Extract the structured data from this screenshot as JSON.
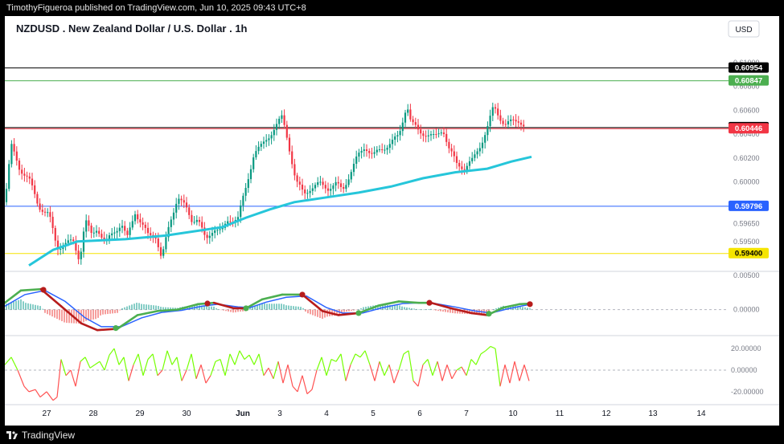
{
  "header": {
    "publisher_text": "TimothyFigueroa published on TradingView.com, Jun 10, 2025 09:43 UTC+8"
  },
  "footer": {
    "brand": "TradingView",
    "logo_icon": "tradingview-logo-icon"
  },
  "chart_data": {
    "type": "candlestick",
    "title": "NZDUSD . New Zealand Dollar / U.S. Dollar . 1h",
    "currency": "USD",
    "x_tick_labels": [
      "27",
      "28",
      "29",
      "30",
      "Jun",
      "3",
      "4",
      "5",
      "6",
      "7",
      "10",
      "11",
      "12",
      "13",
      "14"
    ],
    "price_axis": {
      "tick_labels": [
        "0.61000",
        "0.60800",
        "0.60600",
        "0.60400",
        "0.60200",
        "0.60000",
        "0.59650",
        "0.59500",
        "0.59400"
      ],
      "ylim": [
        0.5925,
        0.6112
      ]
    },
    "price_path": [
      [
        0,
        0.5983
      ],
      [
        8,
        0.603
      ],
      [
        18,
        0.6012
      ],
      [
        30,
        0.6002
      ],
      [
        42,
        0.598
      ],
      [
        55,
        0.5972
      ],
      [
        65,
        0.5945
      ],
      [
        75,
        0.5948
      ],
      [
        85,
        0.595
      ],
      [
        93,
        0.5935
      ],
      [
        100,
        0.5968
      ],
      [
        108,
        0.5955
      ],
      [
        115,
        0.5962
      ],
      [
        125,
        0.5948
      ],
      [
        135,
        0.5958
      ],
      [
        145,
        0.5965
      ],
      [
        152,
        0.5952
      ],
      [
        162,
        0.5975
      ],
      [
        170,
        0.5965
      ],
      [
        178,
        0.5955
      ],
      [
        188,
        0.5955
      ],
      [
        195,
        0.5935
      ],
      [
        205,
        0.5965
      ],
      [
        215,
        0.5988
      ],
      [
        225,
        0.5978
      ],
      [
        232,
        0.5968
      ],
      [
        240,
        0.597
      ],
      [
        250,
        0.595
      ],
      [
        260,
        0.5962
      ],
      [
        270,
        0.5958
      ],
      [
        278,
        0.5968
      ],
      [
        290,
        0.597
      ],
      [
        300,
        0.5995
      ],
      [
        310,
        0.6025
      ],
      [
        320,
        0.603
      ],
      [
        335,
        0.6045
      ],
      [
        345,
        0.6054
      ],
      [
        352,
        0.6035
      ],
      [
        362,
        0.6
      ],
      [
        372,
        0.599
      ],
      [
        380,
        0.5995
      ],
      [
        392,
        0.5998
      ],
      [
        402,
        0.5995
      ],
      [
        412,
        0.5998
      ],
      [
        420,
        0.5993
      ],
      [
        428,
        0.6005
      ],
      [
        438,
        0.602
      ],
      [
        448,
        0.603
      ],
      [
        458,
        0.6022
      ],
      [
        468,
        0.6027
      ],
      [
        478,
        0.6032
      ],
      [
        490,
        0.6038
      ],
      [
        500,
        0.6066
      ],
      [
        505,
        0.605
      ],
      [
        515,
        0.6042
      ],
      [
        525,
        0.604
      ],
      [
        535,
        0.6037
      ],
      [
        545,
        0.6045
      ],
      [
        552,
        0.6028
      ],
      [
        562,
        0.6015
      ],
      [
        572,
        0.6012
      ],
      [
        582,
        0.6018
      ],
      [
        592,
        0.6032
      ],
      [
        600,
        0.6045
      ],
      [
        608,
        0.6063
      ],
      [
        615,
        0.6055
      ],
      [
        622,
        0.6048
      ],
      [
        630,
        0.605
      ],
      [
        640,
        0.6052
      ],
      [
        648,
        0.6045
      ]
    ],
    "moving_average_path": [
      [
        30,
        0.593
      ],
      [
        60,
        0.5943
      ],
      [
        90,
        0.595
      ],
      [
        150,
        0.5952
      ],
      [
        200,
        0.5955
      ],
      [
        270,
        0.5962
      ],
      [
        300,
        0.597
      ],
      [
        330,
        0.5977
      ],
      [
        360,
        0.5983
      ],
      [
        400,
        0.5987
      ],
      [
        440,
        0.5991
      ],
      [
        480,
        0.5996
      ],
      [
        520,
        0.6003
      ],
      [
        560,
        0.6008
      ],
      [
        600,
        0.6011
      ],
      [
        630,
        0.6017
      ],
      [
        655,
        0.6021
      ]
    ],
    "horizontal_lines": [
      {
        "label": "0.60954",
        "value": 0.60954,
        "color": "#000000"
      },
      {
        "label": "0.60847",
        "value": 0.60847,
        "color": "#4caf50"
      },
      {
        "label": "0.60455",
        "value": 0.60455,
        "color": "#000000"
      },
      {
        "label": "0.60446",
        "value": 0.60446,
        "color": "#f23645"
      },
      {
        "label": "0.59796",
        "value": 0.59796,
        "color": "#2962ff"
      },
      {
        "label": "0.59400",
        "value": 0.594,
        "color": "#f5e400"
      }
    ],
    "macd": {
      "tick_labels": [
        "0.00500",
        "0.00000"
      ],
      "ylim": [
        -0.0038,
        0.0056
      ],
      "macd_line": [
        [
          0,
          0.001
        ],
        [
          20,
          0.0028
        ],
        [
          45,
          0.003
        ],
        [
          70,
          0.0005
        ],
        [
          95,
          -0.002
        ],
        [
          115,
          -0.003
        ],
        [
          140,
          -0.0028
        ],
        [
          165,
          -0.0008
        ],
        [
          190,
          -0.0002
        ],
        [
          215,
          0.0
        ],
        [
          240,
          0.0008
        ],
        [
          260,
          0.001
        ],
        [
          285,
          0.0002
        ],
        [
          300,
          0.0002
        ],
        [
          320,
          0.0015
        ],
        [
          345,
          0.0022
        ],
        [
          370,
          0.0022
        ],
        [
          395,
          -0.0002
        ],
        [
          415,
          -0.0008
        ],
        [
          440,
          -0.0005
        ],
        [
          465,
          0.0006
        ],
        [
          490,
          0.0012
        ],
        [
          515,
          0.001
        ],
        [
          530,
          0.001
        ],
        [
          555,
          0.0002
        ],
        [
          580,
          -0.0005
        ],
        [
          600,
          -0.0008
        ],
        [
          620,
          0.0003
        ],
        [
          640,
          0.0008
        ],
        [
          655,
          0.0009
        ]
      ],
      "signal_line": [
        [
          0,
          0.0005
        ],
        [
          25,
          0.0022
        ],
        [
          50,
          0.0028
        ],
        [
          75,
          0.0012
        ],
        [
          100,
          -0.0012
        ],
        [
          120,
          -0.0025
        ],
        [
          145,
          -0.0025
        ],
        [
          170,
          -0.0012
        ],
        [
          195,
          -0.0004
        ],
        [
          220,
          -0.0001
        ],
        [
          245,
          0.0005
        ],
        [
          265,
          0.0008
        ],
        [
          290,
          0.0004
        ],
        [
          305,
          0.0003
        ],
        [
          325,
          0.0011
        ],
        [
          350,
          0.0018
        ],
        [
          375,
          0.002
        ],
        [
          400,
          0.0003
        ],
        [
          420,
          -0.0005
        ],
        [
          445,
          -0.0005
        ],
        [
          470,
          0.0003
        ],
        [
          495,
          0.0009
        ],
        [
          520,
          0.001
        ],
        [
          535,
          0.0009
        ],
        [
          560,
          0.0004
        ],
        [
          585,
          -0.0002
        ],
        [
          605,
          -0.0005
        ],
        [
          625,
          0.0001
        ],
        [
          645,
          0.0006
        ],
        [
          655,
          0.0008
        ]
      ],
      "cross_markers": [
        {
          "x": 48,
          "value": 0.0029,
          "color": "#b71c1c"
        },
        {
          "x": 138,
          "value": -0.0027,
          "color": "#4caf50"
        },
        {
          "x": 252,
          "value": 0.0009,
          "color": "#b71c1c"
        },
        {
          "x": 300,
          "value": 0.0002,
          "color": "#4caf50"
        },
        {
          "x": 370,
          "value": 0.0022,
          "color": "#b71c1c"
        },
        {
          "x": 440,
          "value": -0.0005,
          "color": "#4caf50"
        },
        {
          "x": 528,
          "value": 0.001,
          "color": "#b71c1c"
        },
        {
          "x": 602,
          "value": -0.0006,
          "color": "#4caf50"
        },
        {
          "x": 653,
          "value": 0.0008,
          "color": "#b71c1c"
        }
      ]
    },
    "oscillator": {
      "tick_labels": [
        "20.00000",
        "0.00000",
        "-20.00000"
      ],
      "ylim": [
        -32,
        32
      ],
      "path": [
        [
          0,
          5
        ],
        [
          8,
          12
        ],
        [
          16,
          0
        ],
        [
          24,
          -15
        ],
        [
          30,
          -20
        ],
        [
          38,
          -18
        ],
        [
          44,
          -25
        ],
        [
          52,
          -20
        ],
        [
          60,
          -28
        ],
        [
          65,
          -25
        ],
        [
          70,
          10
        ],
        [
          76,
          -5
        ],
        [
          82,
          0
        ],
        [
          88,
          -15
        ],
        [
          94,
          8
        ],
        [
          100,
          12
        ],
        [
          106,
          2
        ],
        [
          112,
          5
        ],
        [
          118,
          8
        ],
        [
          124,
          0
        ],
        [
          130,
          14
        ],
        [
          136,
          20
        ],
        [
          142,
          5
        ],
        [
          148,
          12
        ],
        [
          154,
          -10
        ],
        [
          160,
          5
        ],
        [
          166,
          15
        ],
        [
          172,
          -5
        ],
        [
          178,
          10
        ],
        [
          184,
          15
        ],
        [
          190,
          -5
        ],
        [
          196,
          0
        ],
        [
          202,
          18
        ],
        [
          208,
          5
        ],
        [
          214,
          12
        ],
        [
          220,
          -10
        ],
        [
          226,
          0
        ],
        [
          232,
          15
        ],
        [
          238,
          -8
        ],
        [
          244,
          5
        ],
        [
          250,
          -12
        ],
        [
          256,
          -5
        ],
        [
          262,
          8
        ],
        [
          268,
          10
        ],
        [
          274,
          -5
        ],
        [
          280,
          15
        ],
        [
          286,
          5
        ],
        [
          292,
          18
        ],
        [
          298,
          10
        ],
        [
          304,
          14
        ],
        [
          310,
          5
        ],
        [
          316,
          15
        ],
        [
          322,
          -5
        ],
        [
          328,
          2
        ],
        [
          334,
          -8
        ],
        [
          340,
          8
        ],
        [
          346,
          -12
        ],
        [
          352,
          5
        ],
        [
          358,
          -15
        ],
        [
          364,
          -20
        ],
        [
          370,
          -5
        ],
        [
          376,
          -22
        ],
        [
          382,
          -18
        ],
        [
          388,
          0
        ],
        [
          394,
          12
        ],
        [
          400,
          -5
        ],
        [
          406,
          10
        ],
        [
          412,
          8
        ],
        [
          418,
          15
        ],
        [
          424,
          -10
        ],
        [
          430,
          5
        ],
        [
          436,
          15
        ],
        [
          442,
          12
        ],
        [
          448,
          18
        ],
        [
          454,
          5
        ],
        [
          460,
          -10
        ],
        [
          466,
          8
        ],
        [
          472,
          -5
        ],
        [
          478,
          5
        ],
        [
          484,
          -12
        ],
        [
          490,
          0
        ],
        [
          496,
          15
        ],
        [
          502,
          18
        ],
        [
          508,
          -10
        ],
        [
          514,
          -15
        ],
        [
          520,
          5
        ],
        [
          526,
          10
        ],
        [
          532,
          -5
        ],
        [
          538,
          8
        ],
        [
          544,
          -10
        ],
        [
          550,
          5
        ],
        [
          556,
          -8
        ],
        [
          562,
          0
        ],
        [
          568,
          3
        ],
        [
          574,
          -5
        ],
        [
          580,
          10
        ],
        [
          586,
          5
        ],
        [
          592,
          15
        ],
        [
          598,
          18
        ],
        [
          604,
          22
        ],
        [
          610,
          20
        ],
        [
          616,
          -15
        ],
        [
          622,
          5
        ],
        [
          628,
          -12
        ],
        [
          634,
          8
        ],
        [
          640,
          -10
        ],
        [
          646,
          5
        ],
        [
          652,
          -10
        ]
      ]
    }
  }
}
